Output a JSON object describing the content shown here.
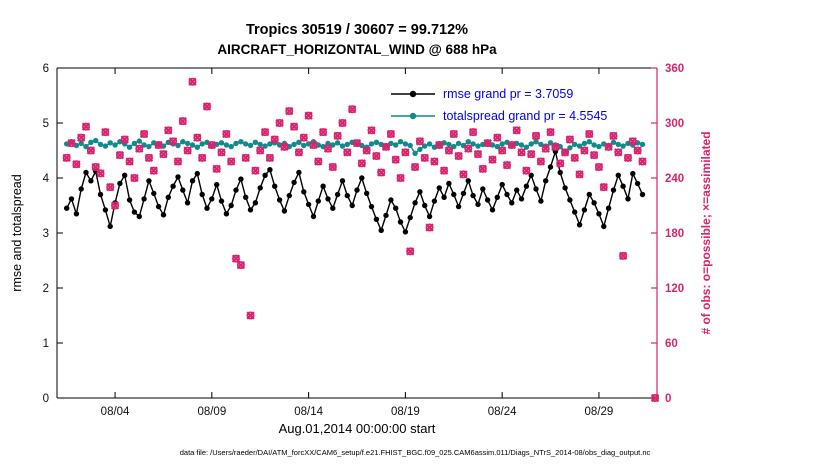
{
  "header": {
    "title_line1": "Tropics 30519 / 30607 = 99.712%",
    "title_line2": "AIRCRAFT_HORIZONTAL_WIND @ 688 hPa"
  },
  "legend": {
    "items": [
      {
        "series": "rmse",
        "label": "rmse grand pr = 3.7059"
      },
      {
        "series": "totalspread",
        "label": "totalspread grand pr = 4.5545"
      }
    ]
  },
  "footer": {
    "text": "data file: /Users/raeder/DAI/ATM_forcXX/CAM6_setup/f.e21.FHIST_BGC.f09_025.CAM6assim.011/Diags_NTrS_2014-08/obs_diag_output.nc"
  },
  "colors": {
    "rmse": "#000000",
    "totalspread": "#0f8b8b",
    "obs": "#d6246e",
    "legend_text": "#0000ee"
  },
  "chart_data": {
    "type": "line",
    "title": "Tropics 30519 / 30607 = 99.712%",
    "subtitle": "AIRCRAFT_HORIZONTAL_WIND @ 688 hPa",
    "grid": false,
    "legend_position": "top-right-inside",
    "x_axis": {
      "label": "Aug.01,2014 00:00:00 start",
      "min": 1,
      "max": 32,
      "ticks": [
        4,
        9,
        14,
        19,
        24,
        29
      ],
      "tick_labels": [
        "08/04",
        "08/09",
        "08/14",
        "08/19",
        "08/24",
        "08/29"
      ]
    },
    "y_left": {
      "label": "rmse and totalspread",
      "min": 0,
      "max": 6,
      "ticks": [
        0,
        1,
        2,
        3,
        4,
        5,
        6
      ]
    },
    "y_right": {
      "label": "# of obs: o=possible; ×=assimilated",
      "min": 0,
      "max": 360,
      "ticks": [
        0,
        60,
        120,
        180,
        240,
        300,
        360
      ]
    },
    "x": {
      "start": 1.5,
      "step": 0.25,
      "count": 120,
      "units": "days of Aug 2014"
    },
    "series": [
      {
        "name": "rmse",
        "axis": "left",
        "color": "#000000",
        "marker": "dot",
        "grand_mean": 3.7059,
        "values": [
          3.45,
          3.62,
          3.35,
          3.8,
          4.1,
          3.95,
          4.12,
          3.7,
          3.42,
          3.12,
          3.55,
          3.9,
          4.05,
          3.6,
          3.38,
          3.3,
          3.62,
          3.95,
          3.72,
          3.48,
          3.33,
          3.65,
          3.85,
          4.02,
          3.78,
          3.55,
          3.95,
          4.08,
          3.7,
          3.45,
          3.62,
          3.88,
          3.58,
          3.35,
          3.5,
          3.78,
          3.98,
          3.65,
          3.42,
          3.55,
          3.82,
          4.05,
          4.15,
          3.85,
          3.6,
          3.4,
          3.68,
          3.92,
          4.1,
          3.75,
          3.52,
          3.3,
          3.58,
          3.85,
          3.62,
          3.45,
          3.7,
          3.95,
          3.68,
          3.5,
          3.78,
          4.0,
          3.72,
          3.48,
          3.25,
          3.05,
          3.32,
          3.6,
          3.45,
          3.2,
          3.02,
          3.28,
          3.55,
          3.75,
          3.5,
          3.3,
          3.58,
          3.82,
          3.65,
          3.9,
          3.7,
          3.48,
          3.72,
          3.95,
          3.68,
          3.52,
          3.8,
          3.6,
          3.42,
          3.65,
          3.88,
          3.7,
          3.55,
          3.78,
          3.62,
          3.85,
          4.05,
          3.8,
          3.58,
          3.95,
          4.2,
          4.48,
          4.1,
          3.82,
          3.6,
          3.38,
          3.15,
          3.42,
          3.7,
          3.55,
          3.35,
          3.12,
          3.45,
          3.78,
          4.05,
          3.85,
          3.62,
          4.08,
          3.9,
          3.7
        ]
      },
      {
        "name": "totalspread",
        "axis": "left",
        "color": "#0f8b8b",
        "marker": "dot",
        "grand_mean": 4.5545,
        "values": [
          4.62,
          4.66,
          4.59,
          4.63,
          4.57,
          4.65,
          4.68,
          4.61,
          4.58,
          4.64,
          4.6,
          4.66,
          4.62,
          4.56,
          4.63,
          4.67,
          4.6,
          4.57,
          4.64,
          4.61,
          4.58,
          4.65,
          4.62,
          4.59,
          4.66,
          4.63,
          4.6,
          4.56,
          4.62,
          4.65,
          4.58,
          4.61,
          4.64,
          4.6,
          4.57,
          4.63,
          4.66,
          4.62,
          4.59,
          4.65,
          4.61,
          4.58,
          4.62,
          4.64,
          4.6,
          4.63,
          4.57,
          4.61,
          4.65,
          4.59,
          4.62,
          4.66,
          4.6,
          4.57,
          4.63,
          4.6,
          4.64,
          4.58,
          4.61,
          4.65,
          4.62,
          4.59,
          4.56,
          4.62,
          4.65,
          4.61,
          4.58,
          4.63,
          4.6,
          4.66,
          4.62,
          4.59,
          4.45,
          4.52,
          4.58,
          4.62,
          4.56,
          4.6,
          4.64,
          4.61,
          4.57,
          4.63,
          4.59,
          4.66,
          4.62,
          4.58,
          4.61,
          4.64,
          4.6,
          4.57,
          4.62,
          4.65,
          4.59,
          4.63,
          4.6,
          4.56,
          4.62,
          4.66,
          4.61,
          4.58,
          4.64,
          4.6,
          4.57,
          4.48,
          4.55,
          4.61,
          4.58,
          4.63,
          4.66,
          4.6,
          4.57,
          4.62,
          4.59,
          4.65,
          4.61,
          4.58,
          4.63,
          4.6,
          4.64,
          4.61
        ]
      }
    ],
    "scatter": {
      "name": "obs assimilated",
      "axis": "right",
      "color": "#d6246e",
      "marker": "circle-plus-cross",
      "possible_same_as_assimilated": true,
      "values": [
        262,
        278,
        255,
        284,
        296,
        270,
        252,
        245,
        290,
        230,
        210,
        265,
        282,
        258,
        240,
        272,
        288,
        262,
        248,
        276,
        266,
        292,
        280,
        258,
        302,
        270,
        345,
        284,
        262,
        318,
        276,
        250,
        268,
        288,
        258,
        152,
        145,
        262,
        90,
        248,
        270,
        290,
        262,
        282,
        300,
        274,
        313,
        296,
        268,
        284,
        308,
        276,
        258,
        290,
        272,
        252,
        286,
        300,
        268,
        315,
        278,
        256,
        270,
        292,
        264,
        246,
        274,
        288,
        260,
        240,
        268,
        160,
        252,
        280,
        262,
        186,
        258,
        276,
        248,
        270,
        288,
        264,
        244,
        272,
        290,
        266,
        250,
        278,
        260,
        284,
        270,
        254,
        276,
        292,
        268,
        248,
        266,
        286,
        258,
        272,
        290,
        274,
        256,
        268,
        282,
        262,
        244,
        270,
        288,
        265,
        252,
        230,
        274,
        286,
        268,
        155,
        262,
        280,
        270,
        258
      ],
      "extra_point": {
        "x": 31.9,
        "value": 0
      }
    }
  }
}
